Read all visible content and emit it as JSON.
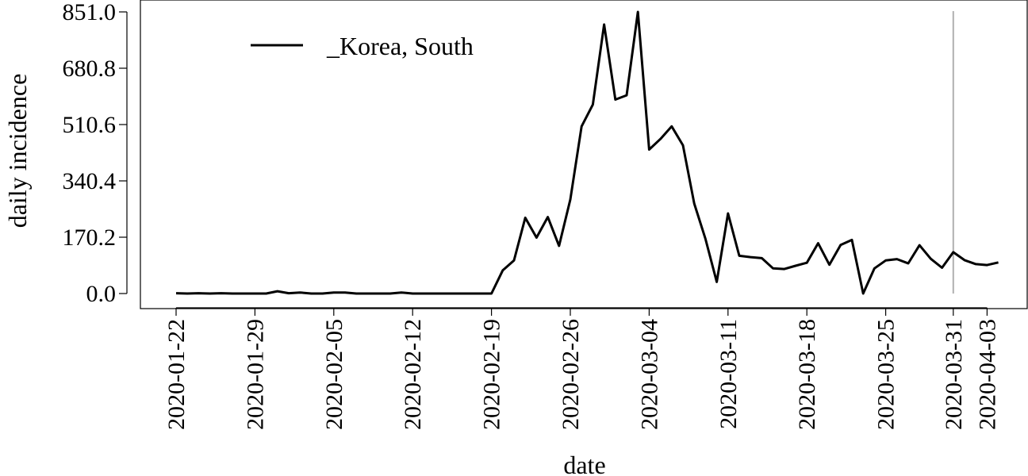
{
  "chart_data": {
    "type": "line",
    "xlabel": "date",
    "ylabel": "daily incidence",
    "ylim": [
      0,
      851
    ],
    "yticks": [
      "0.0",
      "170.2",
      "340.4",
      "510.6",
      "680.8",
      "851.0"
    ],
    "xticks": [
      "2020-01-22",
      "2020-01-29",
      "2020-02-05",
      "2020-02-12",
      "2020-02-19",
      "2020-02-26",
      "2020-03-04",
      "2020-03-11",
      "2020-03-18",
      "2020-03-25",
      "2020-03-31",
      "2020-04-03"
    ],
    "legend": {
      "position": "top-left"
    },
    "reference_line": {
      "x": "2020-03-31",
      "color": "#b0b0b0"
    },
    "grid": false,
    "line_color": "#000000",
    "series": [
      {
        "name": "_Korea, South",
        "x": [
          "2020-01-22",
          "2020-01-23",
          "2020-01-24",
          "2020-01-25",
          "2020-01-26",
          "2020-01-27",
          "2020-01-28",
          "2020-01-29",
          "2020-01-30",
          "2020-01-31",
          "2020-02-01",
          "2020-02-02",
          "2020-02-03",
          "2020-02-04",
          "2020-02-05",
          "2020-02-06",
          "2020-02-07",
          "2020-02-08",
          "2020-02-09",
          "2020-02-10",
          "2020-02-11",
          "2020-02-12",
          "2020-02-13",
          "2020-02-14",
          "2020-02-15",
          "2020-02-16",
          "2020-02-17",
          "2020-02-18",
          "2020-02-19",
          "2020-02-20",
          "2020-02-21",
          "2020-02-22",
          "2020-02-23",
          "2020-02-24",
          "2020-02-25",
          "2020-02-26",
          "2020-02-27",
          "2020-02-28",
          "2020-02-29",
          "2020-03-01",
          "2020-03-02",
          "2020-03-03",
          "2020-03-04",
          "2020-03-05",
          "2020-03-06",
          "2020-03-07",
          "2020-03-08",
          "2020-03-09",
          "2020-03-10",
          "2020-03-11",
          "2020-03-12",
          "2020-03-13",
          "2020-03-14",
          "2020-03-15",
          "2020-03-16",
          "2020-03-17",
          "2020-03-18",
          "2020-03-19",
          "2020-03-20",
          "2020-03-21",
          "2020-03-22",
          "2020-03-23",
          "2020-03-24",
          "2020-03-25",
          "2020-03-26",
          "2020-03-27",
          "2020-03-28",
          "2020-03-29",
          "2020-03-30",
          "2020-03-31",
          "2020-04-01",
          "2020-04-02",
          "2020-04-03",
          "2020-04-04"
        ],
        "values": [
          1,
          0,
          1,
          0,
          1,
          0,
          0,
          0,
          0,
          7,
          1,
          3,
          0,
          0,
          3,
          3,
          0,
          0,
          0,
          0,
          3,
          0,
          0,
          0,
          0,
          0,
          0,
          0,
          0,
          70,
          100,
          229,
          169,
          231,
          144,
          284,
          505,
          571,
          813,
          586,
          599,
          851,
          435,
          467,
          505,
          448,
          272,
          165,
          35,
          242,
          114,
          110,
          107,
          76,
          74,
          84,
          93,
          152,
          87,
          147,
          162,
          0,
          76,
          100,
          104,
          91,
          146,
          105,
          78,
          125,
          101,
          89,
          86,
          94
        ]
      }
    ]
  }
}
